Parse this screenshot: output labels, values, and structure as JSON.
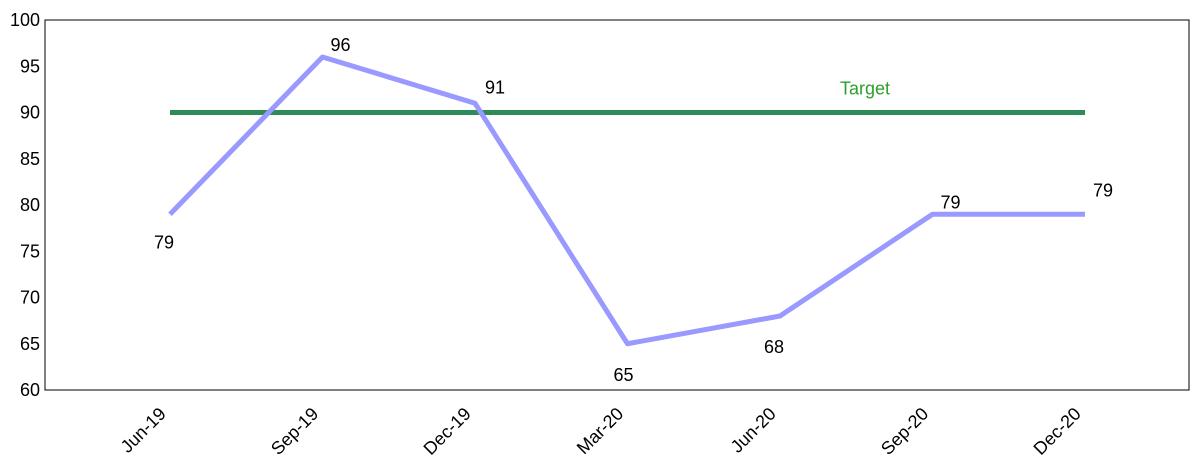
{
  "chart_data": {
    "type": "line",
    "categories": [
      "Jun-19",
      "Sep-19",
      "Dec-19",
      "Mar-20",
      "Jun-20",
      "Sep-20",
      "Dec-20"
    ],
    "series": [
      {
        "values": [
          79,
          96,
          91,
          65,
          68,
          79,
          79
        ],
        "color": "#9999ff"
      },
      {
        "name": "Target",
        "values": [
          90,
          90,
          90,
          90,
          90,
          90,
          90
        ],
        "color": "#2e8b57"
      }
    ],
    "data_labels": [
      "79",
      "96",
      "91",
      "65",
      "68",
      "79",
      "79"
    ],
    "target_label": "Target",
    "target_label_color": "#2ca02c",
    "ylim": [
      60,
      100
    ],
    "yticks": [
      "60",
      "65",
      "70",
      "75",
      "80",
      "85",
      "90",
      "95",
      "100"
    ],
    "title": "",
    "xlabel": "",
    "ylabel": "",
    "grid": false,
    "legend": "none"
  }
}
